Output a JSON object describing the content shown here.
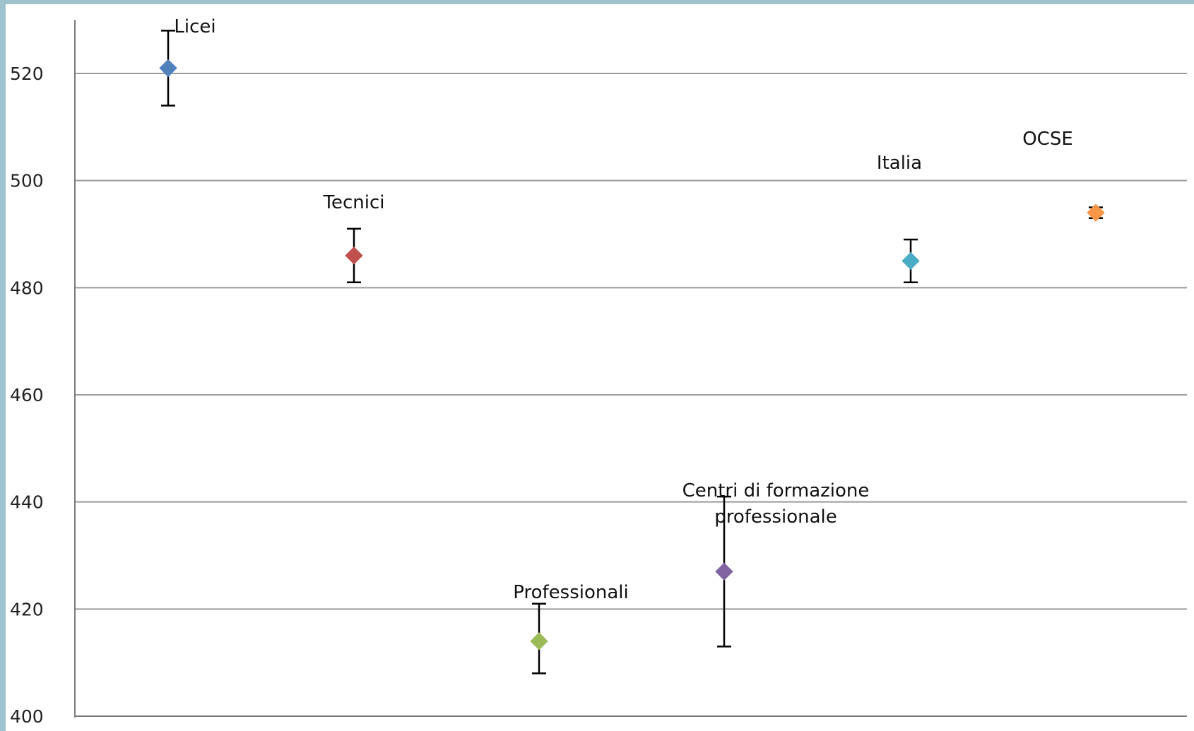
{
  "chart_data": {
    "type": "scatter",
    "title": "",
    "xlabel": "",
    "ylabel": "",
    "ylim": [
      400,
      530
    ],
    "yticks": [
      400,
      420,
      440,
      460,
      480,
      500,
      520
    ],
    "grid": true,
    "legend": "none",
    "points": [
      {
        "label": "Licei",
        "label_lines": [
          "Licei"
        ],
        "value": 521,
        "err_low": 514,
        "err_high": 528,
        "color": "#4f81bd"
      },
      {
        "label": "Tecnici",
        "label_lines": [
          "Tecnici"
        ],
        "value": 486,
        "err_low": 481,
        "err_high": 491,
        "color": "#c0504d"
      },
      {
        "label": "Professionali",
        "label_lines": [
          "Professionali"
        ],
        "value": 414,
        "err_low": 408,
        "err_high": 421,
        "color": "#9bbb59"
      },
      {
        "label": "Centri di formazione professionale",
        "label_lines": [
          "Centri di formazione",
          "professionale"
        ],
        "value": 427,
        "err_low": 413,
        "err_high": 441,
        "color": "#8064a2"
      },
      {
        "label": "Italia",
        "label_lines": [
          "Italia"
        ],
        "value": 485,
        "err_low": 481,
        "err_high": 489,
        "color": "#4bacc6"
      },
      {
        "label": "OCSE",
        "label_lines": [
          "OCSE"
        ],
        "value": 494,
        "err_low": 493,
        "err_high": 495,
        "color": "#f79646"
      }
    ]
  }
}
